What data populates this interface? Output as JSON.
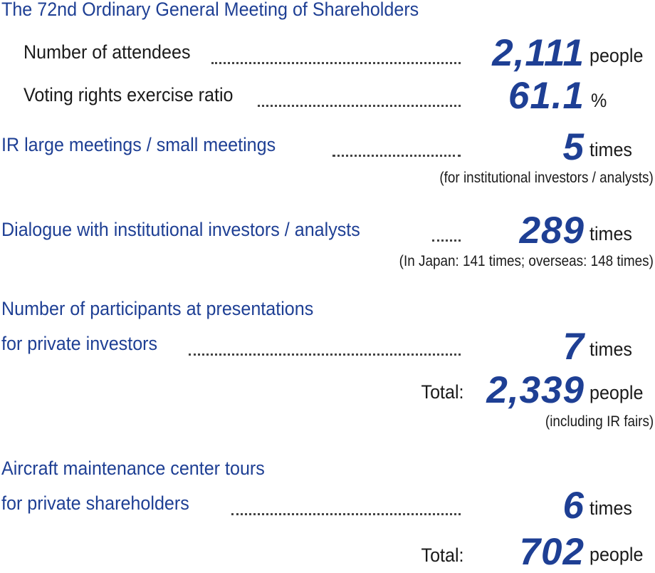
{
  "agm": {
    "title": "The 72nd Ordinary General Meeting of Shareholders",
    "attendees": {
      "label": "Number of attendees",
      "value": "2,111",
      "unit": "people"
    },
    "voting": {
      "label": "Voting rights exercise ratio",
      "value": "61.1",
      "unit": "%"
    }
  },
  "ir_meetings": {
    "label": "IR large meetings / small meetings",
    "value": "5",
    "unit": "times",
    "note": "(for institutional investors / analysts)"
  },
  "dialogue": {
    "label": "Dialogue with institutional investors / analysts",
    "value": "289",
    "unit": "times",
    "note": "(In Japan: 141 times; overseas: 148 times)"
  },
  "presentations": {
    "label_line1": "Number of participants at presentations",
    "label_line2": "for private investors",
    "value": "7",
    "unit": "times",
    "total_label": "Total:",
    "total_value": "2,339",
    "total_unit": "people",
    "note": "(including IR fairs)"
  },
  "tours": {
    "label_line1": "Aircraft maintenance center tours",
    "label_line2": "for private shareholders",
    "value": "6",
    "unit": "times",
    "total_label": "Total:",
    "total_value": "702",
    "total_unit": "people"
  },
  "colors": {
    "accent": "#1e3f94",
    "text": "#1a1a1a"
  }
}
